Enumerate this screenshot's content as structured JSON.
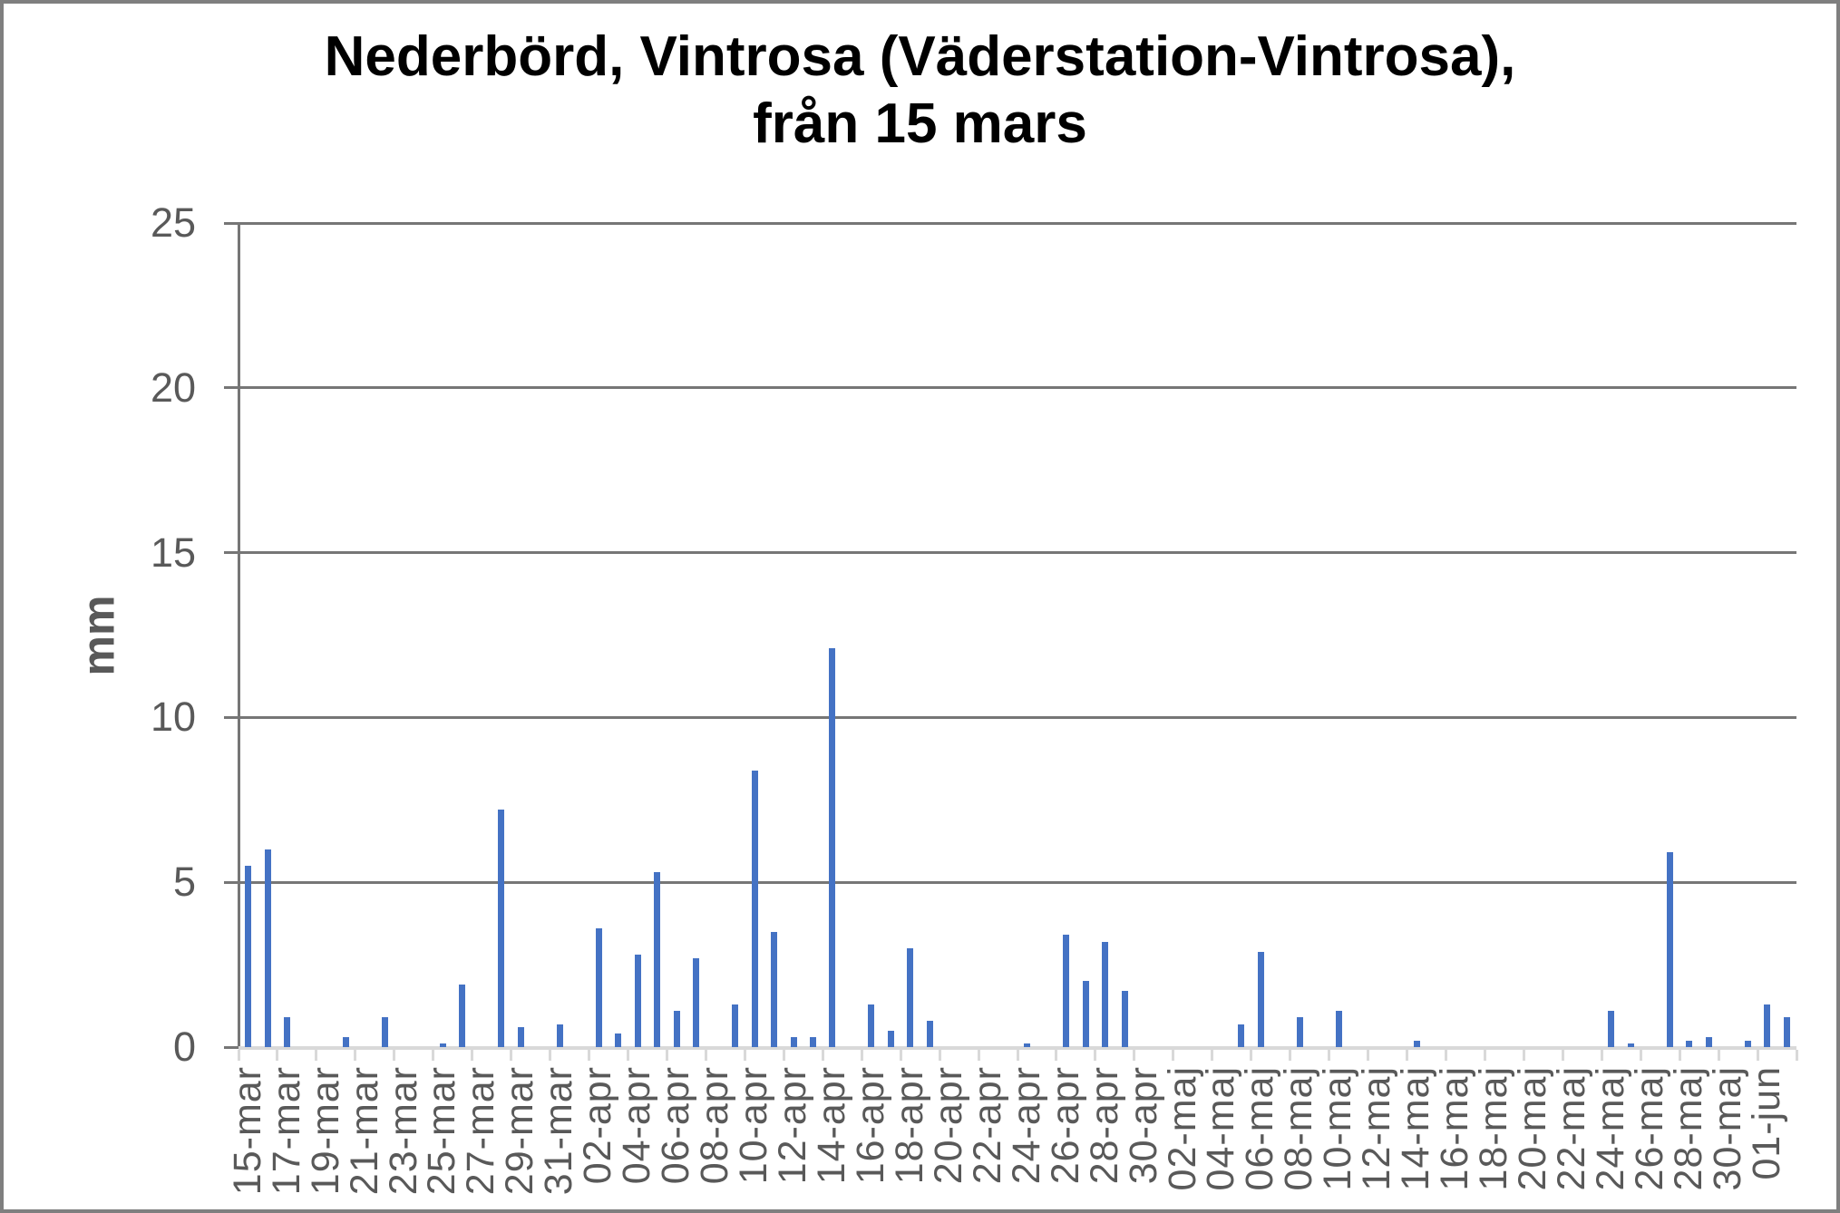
{
  "title": {
    "line1": "Nederbörd, Vintrosa (Väderstation-Vintrosa),",
    "line2": "från 15 mars"
  },
  "colors": {
    "bar": "#4472C4",
    "gridline": "#767676",
    "value_axis_line": "#767676",
    "category_axis_line": "#d9d9d9",
    "axis_tick_labels": "#595959",
    "title_text": "#000000",
    "frame_border": "#7f7f7f",
    "background": "#ffffff"
  },
  "chart_data": {
    "type": "bar",
    "title": "Nederbörd, Vintrosa (Väderstation-Vintrosa), från 15 mars",
    "xlabel": "",
    "ylabel": "mm",
    "ylim": [
      0,
      25
    ],
    "yticks": [
      0,
      5,
      10,
      15,
      20,
      25
    ],
    "grid": "horizontal",
    "legend": "none",
    "x_label_every_n": 2,
    "categories": [
      "15-mar",
      "16-mar",
      "17-mar",
      "18-mar",
      "19-mar",
      "20-mar",
      "21-mar",
      "22-mar",
      "23-mar",
      "24-mar",
      "25-mar",
      "26-mar",
      "27-mar",
      "28-mar",
      "29-mar",
      "30-mar",
      "31-mar",
      "01-apr",
      "02-apr",
      "03-apr",
      "04-apr",
      "05-apr",
      "06-apr",
      "07-apr",
      "08-apr",
      "09-apr",
      "10-apr",
      "11-apr",
      "12-apr",
      "13-apr",
      "14-apr",
      "15-apr",
      "16-apr",
      "17-apr",
      "18-apr",
      "19-apr",
      "20-apr",
      "21-apr",
      "22-apr",
      "23-apr",
      "24-apr",
      "25-apr",
      "26-apr",
      "27-apr",
      "28-apr",
      "29-apr",
      "30-apr",
      "01-maj",
      "02-maj",
      "03-maj",
      "04-maj",
      "05-maj",
      "06-maj",
      "07-maj",
      "08-maj",
      "09-maj",
      "10-maj",
      "11-maj",
      "12-maj",
      "13-maj",
      "14-maj",
      "15-maj",
      "16-maj",
      "17-maj",
      "18-maj",
      "19-maj",
      "20-maj",
      "21-maj",
      "22-maj",
      "23-maj",
      "24-maj",
      "25-maj",
      "26-maj",
      "27-maj",
      "28-maj",
      "29-maj",
      "30-maj",
      "31-maj",
      "01-jun",
      "02-jun"
    ],
    "values": [
      5.5,
      6.0,
      0.9,
      0,
      0,
      0.3,
      0,
      0.9,
      0,
      0,
      0.1,
      1.9,
      0,
      7.2,
      0.6,
      0,
      0.7,
      0,
      3.6,
      0.4,
      2.8,
      5.3,
      1.1,
      2.7,
      0,
      1.3,
      8.4,
      3.5,
      0.3,
      0.3,
      12.1,
      0,
      1.3,
      0.5,
      3.0,
      0.8,
      0,
      0,
      0,
      0,
      0.1,
      0,
      3.4,
      2.0,
      3.2,
      1.7,
      0,
      0,
      0,
      0,
      0,
      0.7,
      2.9,
      0,
      0.9,
      0,
      1.1,
      0,
      0,
      0,
      0.2,
      0,
      0,
      0,
      0,
      0,
      0,
      0,
      0,
      0,
      1.1,
      0.1,
      0,
      5.9,
      0.2,
      0.3,
      0,
      0.2,
      1.3,
      0.9
    ]
  }
}
